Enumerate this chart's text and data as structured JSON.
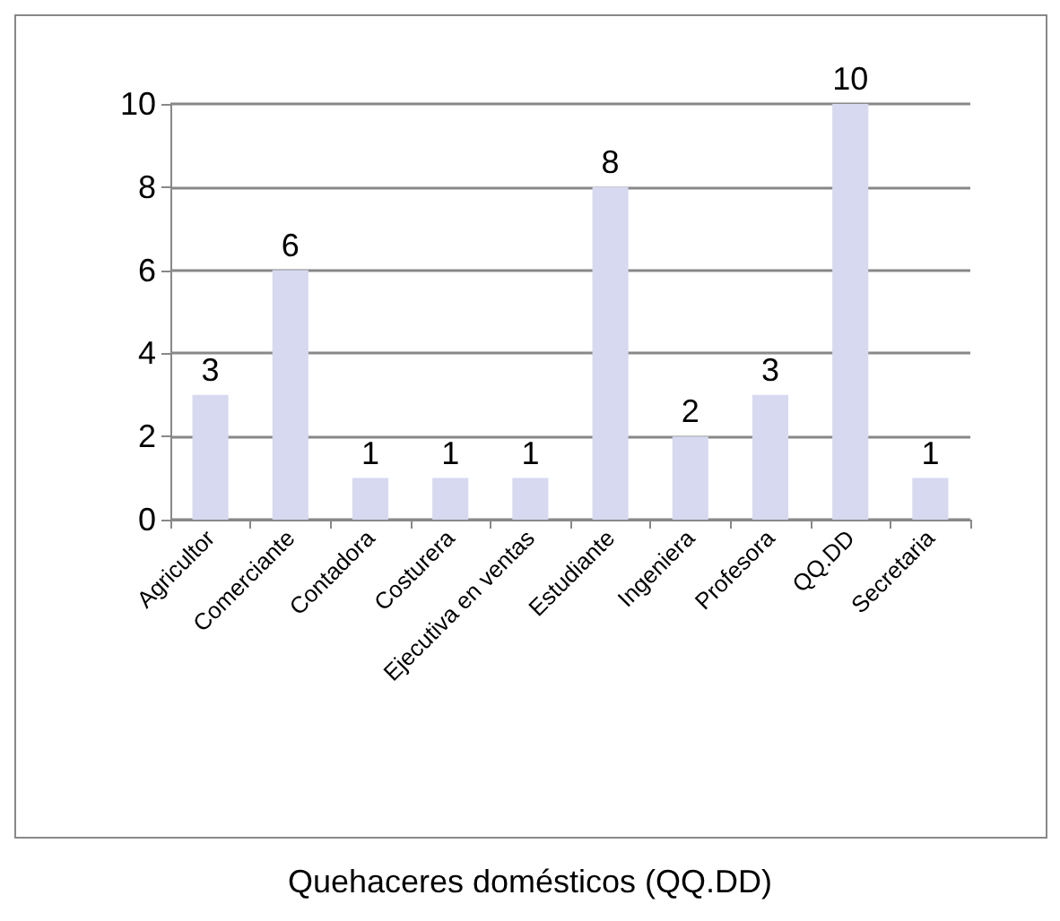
{
  "chart_data": {
    "type": "bar",
    "title": "Quehaceres domésticos (QQ.DD)",
    "categories": [
      "Agricultor",
      "Comerciante",
      "Contadora",
      "Costurera",
      "Ejecutiva en ventas",
      "Estudiante",
      "Ingeniera",
      "Profesora",
      "QQ.DD",
      "Secretaria"
    ],
    "values": [
      3,
      6,
      1,
      1,
      1,
      8,
      2,
      3,
      10,
      1
    ],
    "color": "#d6d9f0",
    "ylim": [
      0,
      10
    ],
    "yticks": [
      0,
      2,
      4,
      6,
      8,
      10
    ],
    "grid": "y",
    "data_labels": true
  }
}
